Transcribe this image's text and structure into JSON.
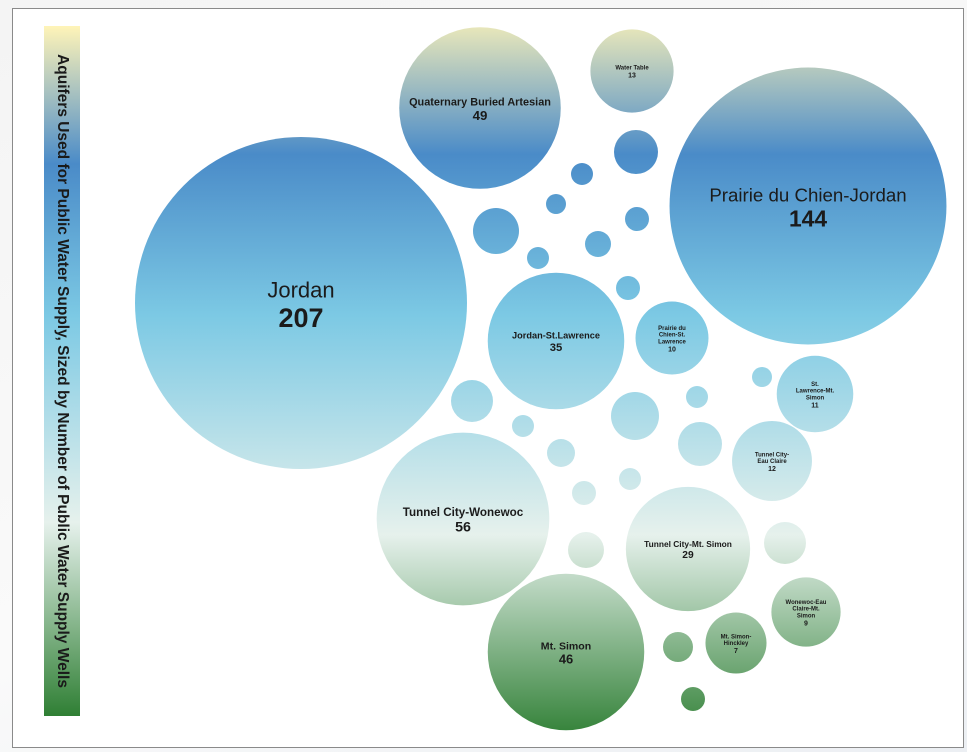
{
  "chart_data": {
    "type": "bubble",
    "title": "Aquifers Used for Public Water Supply, Sized by Number of Public Water Supply Wells",
    "colors": {
      "top": "#fff4b8",
      "upper": "#4a8bc8",
      "middle": "#7cc9e4",
      "lower": "#e6f1ec",
      "bottom": "#2f7f34"
    },
    "bubbles": [
      {
        "label": "Jordan",
        "value": 207
      },
      {
        "label": "Prairie du Chien-Jordan",
        "value": 144
      },
      {
        "label": "Tunnel City-Wonewoc",
        "value": 56
      },
      {
        "label": "Quaternary Buried Artesian",
        "value": 49
      },
      {
        "label": "Mt. Simon",
        "value": 46
      },
      {
        "label": "Jordan-St.Lawrence",
        "value": 35
      },
      {
        "label": "Tunnel City-Mt. Simon",
        "value": 29
      },
      {
        "label": "Water Table",
        "value": 13
      },
      {
        "label": "Tunnel City-Eau Claire",
        "value": 12
      },
      {
        "label": "St. Lawrence-Mt. Simon",
        "value": 11
      },
      {
        "label": "Prairie du Chien-St. Lawrence",
        "value": 10
      },
      {
        "label": "Wonewoc-Eau Claire-Mt. Simon",
        "value": 9
      },
      {
        "label": "Mt. Simon-Hinckley",
        "value": 7
      }
    ]
  }
}
